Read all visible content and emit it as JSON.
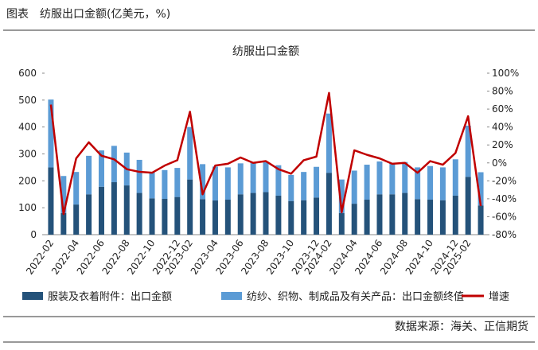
{
  "header": "图表　纺服出口金额(亿美元，%)",
  "source": "数据来源：海关、正信期货",
  "chart_data": {
    "type": "bar-line",
    "title": "纺服出口金额",
    "categories": [
      "2022-02",
      null,
      "2022-04",
      null,
      "2022-06",
      null,
      "2022-08",
      null,
      "2022-10",
      null,
      "2022-12",
      "2023-02",
      null,
      "2023-04",
      null,
      "2023-06",
      null,
      "2023-08",
      null,
      "2023-10",
      null,
      "2023-12",
      "2024-02",
      null,
      "2024-04",
      null,
      "2024-06",
      null,
      "2024-08",
      null,
      "2024-10",
      null,
      "2024-12",
      "2025-02",
      null
    ],
    "series": [
      {
        "name": "服装及衣着附件：出口金额",
        "color": "#24527a",
        "stack": true,
        "values": [
          250,
          80,
          112,
          150,
          178,
          195,
          183,
          155,
          135,
          133,
          140,
          205,
          132,
          127,
          130,
          150,
          155,
          158,
          145,
          125,
          128,
          138,
          230,
          80,
          115,
          130,
          150,
          150,
          155,
          132,
          130,
          128,
          145,
          215,
          108
        ]
      },
      {
        "name": "纺纱、织物、制成品及有关产品：出口金额终值",
        "color": "#5b9bd5",
        "stack": true,
        "values": [
          252,
          138,
          121,
          143,
          135,
          135,
          122,
          123,
          97,
          107,
          108,
          195,
          130,
          126,
          120,
          115,
          113,
          112,
          113,
          97,
          105,
          114,
          220,
          125,
          123,
          130,
          122,
          115,
          115,
          118,
          125,
          122,
          135,
          190,
          124
        ]
      },
      {
        "name": "增速",
        "color": "#c00000",
        "axis": "y2",
        "values": [
          65,
          -57,
          5,
          23,
          8,
          4,
          -7,
          -10,
          -11,
          -3,
          3,
          57,
          -35,
          -3,
          -1,
          6,
          0,
          2,
          -7,
          -12,
          3,
          7,
          78,
          -55,
          14,
          9,
          5,
          -1,
          0,
          -11,
          2,
          -2,
          11,
          52,
          -48
        ]
      }
    ],
    "ylim": [
      0,
      600
    ],
    "yticks": [
      0,
      100,
      200,
      300,
      400,
      500,
      600
    ],
    "y2lim": [
      -80,
      100
    ],
    "y2ticks": [
      {
        "value": -80,
        "label": "-80%"
      },
      {
        "value": -60,
        "label": "-60%"
      },
      {
        "value": -40,
        "label": "-40%"
      },
      {
        "value": -20,
        "label": "-20%"
      },
      {
        "value": 0,
        "label": "0%"
      },
      {
        "value": 20,
        "label": "20%"
      },
      {
        "value": 40,
        "label": "40%"
      },
      {
        "value": 60,
        "label": "60%"
      },
      {
        "value": 80,
        "label": "80%"
      },
      {
        "value": 100,
        "label": "100%"
      }
    ]
  }
}
